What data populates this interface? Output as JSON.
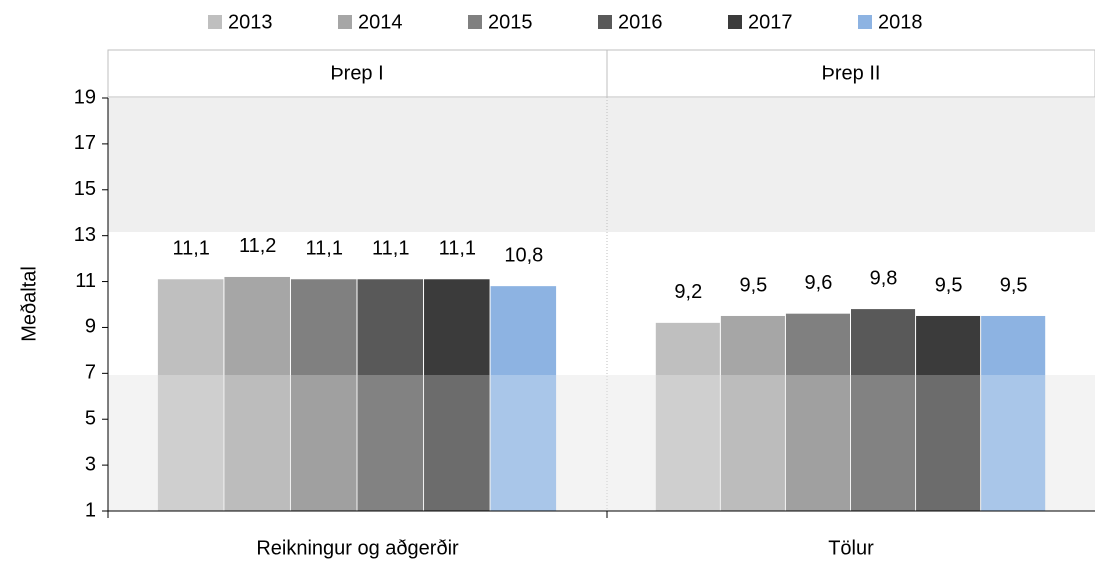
{
  "chart_data": {
    "type": "bar",
    "y_label": "Meðaltal",
    "panels": [
      "Þrep I",
      "Þrep II"
    ],
    "categories": [
      "Reikningur og aðgerðir",
      "Tölur"
    ],
    "series": [
      {
        "name": "2013",
        "color": "#bfbfbf",
        "values": [
          11.1,
          9.2
        ],
        "value_labels": [
          "11,1",
          "9,2"
        ]
      },
      {
        "name": "2014",
        "color": "#a6a6a6",
        "values": [
          11.2,
          9.5
        ],
        "value_labels": [
          "11,2",
          "9,5"
        ]
      },
      {
        "name": "2015",
        "color": "#808080",
        "values": [
          11.1,
          9.6
        ],
        "value_labels": [
          "11,1",
          "9,6"
        ]
      },
      {
        "name": "2016",
        "color": "#595959",
        "values": [
          11.1,
          9.8
        ],
        "value_labels": [
          "11,1",
          "9,8"
        ]
      },
      {
        "name": "2017",
        "color": "#3b3b3b",
        "values": [
          11.1,
          9.5
        ],
        "value_labels": [
          "11,1",
          "9,5"
        ]
      },
      {
        "name": "2018",
        "color": "#8db3e2",
        "values": [
          10.8,
          9.5
        ],
        "value_labels": [
          "10,8",
          "9,5"
        ]
      }
    ],
    "ylim": [
      1,
      19
    ],
    "yticks": [
      1,
      3,
      5,
      7,
      9,
      11,
      13,
      15,
      17,
      19
    ],
    "legend": "top"
  }
}
